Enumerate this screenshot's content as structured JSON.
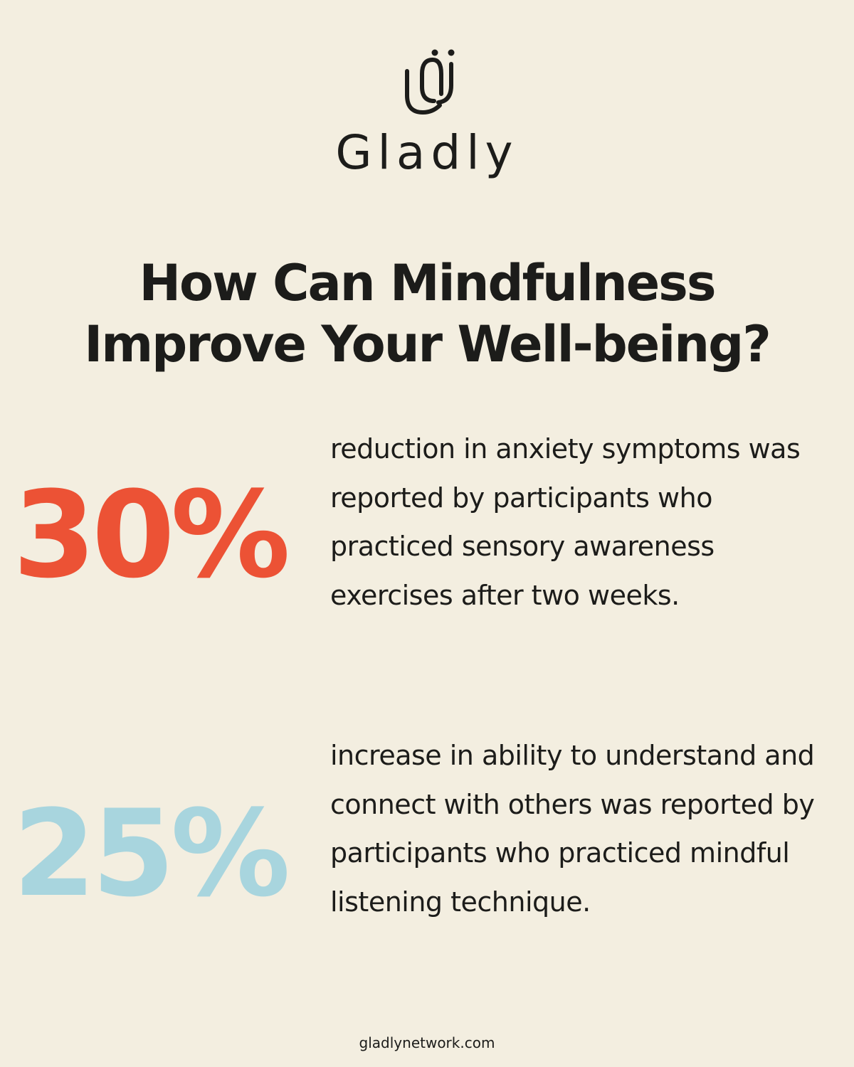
{
  "brand": {
    "name": "Gladly",
    "logo_icon": "gladly-logo-icon"
  },
  "title": {
    "line1": "How Can Mindfulness",
    "line2": "Improve Your Well-being?"
  },
  "stats": [
    {
      "value": "30%",
      "color": "#ec5235",
      "description": "reduction in anxiety symptoms was reported by participants who practiced sensory awareness exercises after two weeks."
    },
    {
      "value": "25%",
      "color": "#a8d5de",
      "description": "increase in ability to understand and connect with others was reported by participants who practiced mindful listening technique."
    }
  ],
  "footer": {
    "url": "gladlynetwork.com"
  },
  "colors": {
    "background": "#f3eee0",
    "text": "#1c1c1a"
  }
}
